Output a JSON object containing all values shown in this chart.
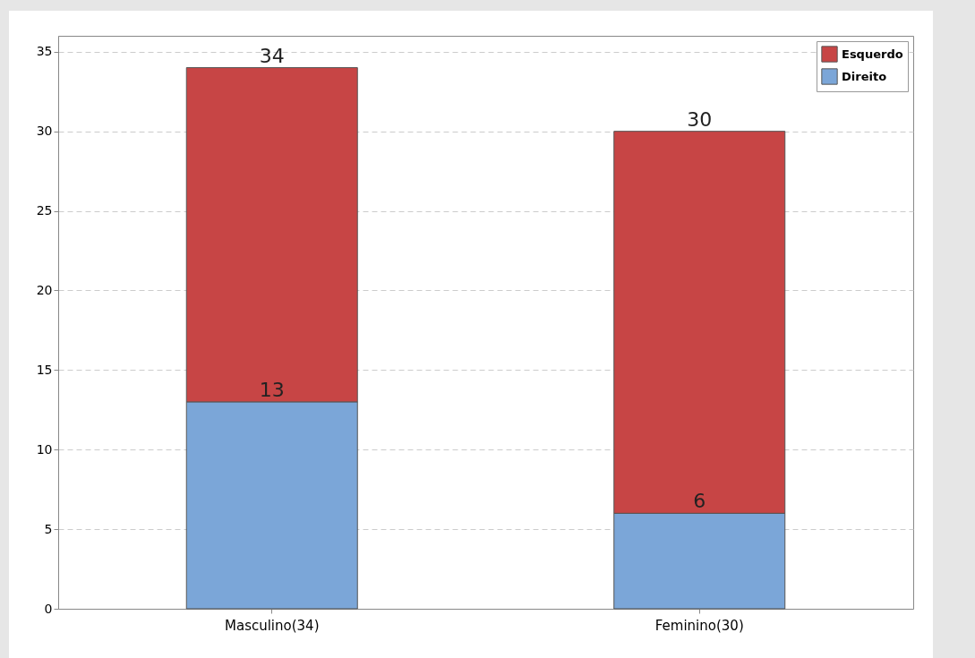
{
  "chart_data": {
    "type": "bar",
    "stacked": true,
    "categories": [
      "Masculino(34)",
      "Feminino(30)"
    ],
    "series": [
      {
        "name": "Direito",
        "color": "#7ba6d8",
        "values": [
          13,
          6
        ],
        "value_labels": [
          "13",
          "6"
        ]
      },
      {
        "name": "Esquerdo",
        "color": "#c74545",
        "values": [
          21,
          24
        ]
      }
    ],
    "totals": [
      "34",
      "30"
    ],
    "ylim": [
      0,
      36
    ],
    "yticks": [
      0,
      5,
      10,
      15,
      20,
      25,
      30,
      35
    ],
    "grid": "y",
    "legend": "top right"
  }
}
